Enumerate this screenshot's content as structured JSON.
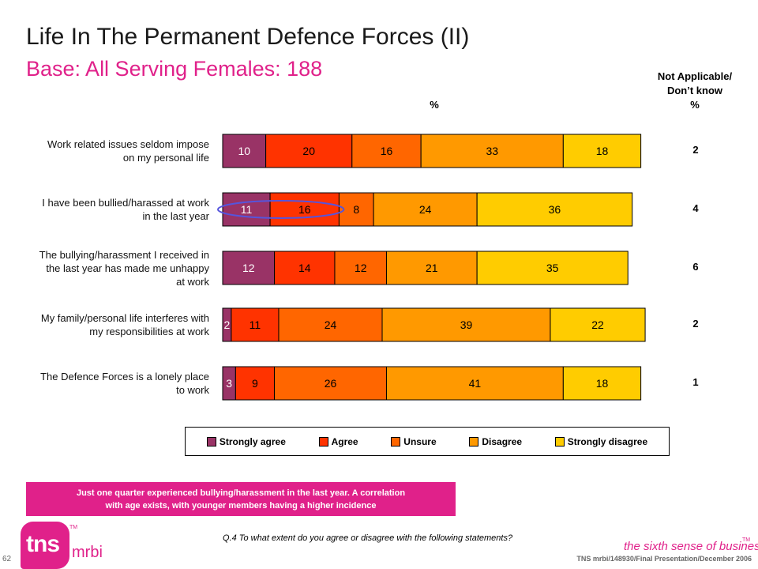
{
  "slide": {
    "title": "Life In The Permanent Defence Forces (II)",
    "subtitle": "Base:  All Serving Females:  188",
    "na_header_line1": "Not Applicable/",
    "na_header_line2": "Don’t know",
    "na_header_line3": "%",
    "pct_header": "%",
    "callout_line1": "Just one quarter experienced bullying/harassment in the last year.  A correlation",
    "callout_line2": "with age exists, with younger members having a higher incidence",
    "question": "Q.4  To what extent do you agree or disagree with the following statements?",
    "footer": "TNS mrbi/148930/Final Presentation/December 2006",
    "page_number": "62",
    "logo_text": "tns",
    "logo_sub": "mrbi",
    "logo_tm": "TM",
    "tagline": "the sixth sense of business",
    "tagline_tm": "TM"
  },
  "chart_data": {
    "type": "bar",
    "orientation": "horizontal",
    "stacked": true,
    "xlim": [
      0,
      100
    ],
    "categories": [
      [
        "Work related issues seldom impose",
        "on my personal life"
      ],
      [
        "I have been bullied/harassed at work",
        "in the last year"
      ],
      [
        "The bullying/harassment I received in",
        "the last year has made me unhappy",
        "at work"
      ],
      [
        "My family/personal life interferes with",
        "my responsibilities at work"
      ],
      [
        "The Defence Forces is a lonely place",
        "to work"
      ]
    ],
    "series": [
      {
        "name": "Strongly agree",
        "color": "#993366",
        "values": [
          10,
          11,
          12,
          2,
          3
        ]
      },
      {
        "name": "Agree",
        "color": "#ff3300",
        "values": [
          20,
          16,
          14,
          11,
          9
        ]
      },
      {
        "name": "Unsure",
        "color": "#ff6600",
        "values": [
          16,
          8,
          12,
          24,
          26
        ]
      },
      {
        "name": "Disagree",
        "color": "#ff9900",
        "values": [
          33,
          24,
          21,
          39,
          41
        ]
      },
      {
        "name": "Strongly disagree",
        "color": "#ffcc00",
        "values": [
          18,
          36,
          35,
          22,
          18
        ]
      }
    ],
    "not_applicable": [
      "2",
      "4",
      "6",
      "2",
      "1"
    ],
    "highlight": {
      "row": 1,
      "segments": [
        "Strongly agree",
        "Agree"
      ]
    },
    "legend_position": "bottom"
  }
}
